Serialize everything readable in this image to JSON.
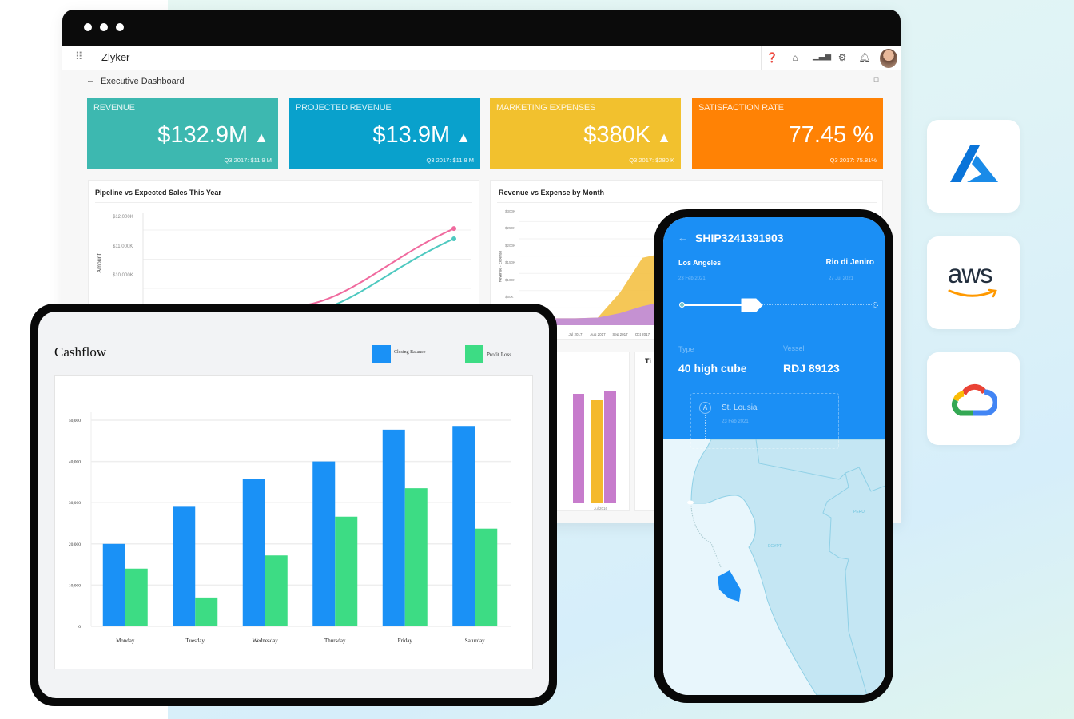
{
  "window": {
    "app_name": "Zlyker",
    "breadcrumb": "Executive Dashboard"
  },
  "header_icons": [
    "help-icon",
    "home-icon",
    "reports-icon",
    "gear-icon",
    "bell-icon",
    "avatar"
  ],
  "kpis": [
    {
      "label": "REVENUE",
      "value": "$132.9M",
      "trend": "▲",
      "sub": "Q3 2017: $11.9 M",
      "color": "#3db8b0"
    },
    {
      "label": "PROJECTED REVENUE",
      "value": "$13.9M",
      "trend": "▲",
      "sub": "Q3 2017: $11.8 M",
      "color": "#09a1cc"
    },
    {
      "label": "MARKETING EXPENSES",
      "value": "$380K",
      "trend": "▲",
      "sub": "Q3 2017: $280 K",
      "color": "#f2c12e"
    },
    {
      "label": "SATISFACTION RATE",
      "value": "77.45 %",
      "trend": "",
      "sub": "Q3 2017: 75.81%",
      "color": "#ff8205"
    }
  ],
  "pipeline_chart": {
    "title": "Pipeline vs Expected Sales This Year",
    "ylabel": "Amount",
    "yticks": [
      "$12,000K",
      "$11,000K",
      "$10,000K"
    ]
  },
  "revenue_chart": {
    "title": "Revenue vs Expense by Month",
    "ylabel": "Revenue - Expense",
    "yticks": [
      "$300K",
      "$250K",
      "$200K",
      "$150K",
      "$100K",
      "$50K"
    ],
    "xticks": [
      "Jul 2017",
      "Aug 2017",
      "Sep 2017",
      "Oct 2017"
    ]
  },
  "small_chart": {
    "xtick": "Jul 2016",
    "tile_title": "Ti"
  },
  "chart_data": [
    {
      "type": "bar",
      "title": "Cashflow",
      "categories": [
        "Monday",
        "Tuesday",
        "Wednesday",
        "Thursday",
        "Friday",
        "Saturday"
      ],
      "series": [
        {
          "name": "Closing Balance",
          "color": "#1a91f6",
          "values": [
            20000,
            29000,
            35800,
            40000,
            47700,
            48600
          ]
        },
        {
          "name": "Profit Loss",
          "color": "#3ddc84",
          "values": [
            14000,
            7000,
            17200,
            26600,
            33500,
            23700
          ]
        }
      ],
      "yticks": [
        "50,000",
        "40,000",
        "30,000",
        "20,000",
        "10,000",
        "0"
      ],
      "ylim": [
        0,
        50000
      ],
      "grid": true,
      "legend": "top-right"
    },
    {
      "type": "line",
      "title": "Pipeline vs Expected Sales This Year",
      "ylabel": "Amount",
      "ylim": [
        9000,
        12000
      ],
      "series": [
        {
          "color": "#f06a9e",
          "values": [
            9340,
            9340,
            12050
          ]
        },
        {
          "color": "#4fc9c0",
          "values": [
            9230,
            9050,
            11700
          ]
        }
      ]
    },
    {
      "type": "area",
      "title": "Revenue vs Expense by Month",
      "categories": [
        "Jul 2017",
        "Aug 2017",
        "Sep 2017",
        "Oct 2017"
      ],
      "ylim": [
        0,
        300
      ],
      "series": [
        {
          "color": "#f4c145",
          "values": [
            20,
            22,
            95,
            195
          ]
        },
        {
          "color": "#c08be0",
          "values": [
            20,
            22,
            35,
            55
          ]
        }
      ]
    }
  ],
  "shipment": {
    "id": "SHIP3241391903",
    "origin": "Los Angeles",
    "origin_date": "23 Feb 2021",
    "destination": "Rio di Jeniro",
    "destination_date": "27 Jul 2021",
    "progress": 0.35,
    "type_label": "Type",
    "type_value": "40 high cube",
    "vessel_label": "Vessel",
    "vessel_value": "RDJ 89123",
    "stop_marker": "A",
    "stop_name": "St. Lousia",
    "stop_date": "23 Feb 2021",
    "map_labels": [
      "EGYPT",
      "PERU"
    ]
  },
  "cloud_providers": [
    {
      "name": "azure-logo",
      "color": "#0a74d9"
    },
    {
      "name": "aws-logo",
      "text": "aws",
      "color": "#232f3e",
      "accent": "#ff9900"
    },
    {
      "name": "google-cloud-logo",
      "colors": [
        "#ea4335",
        "#4285f4",
        "#34a853",
        "#fbbc05"
      ]
    }
  ]
}
